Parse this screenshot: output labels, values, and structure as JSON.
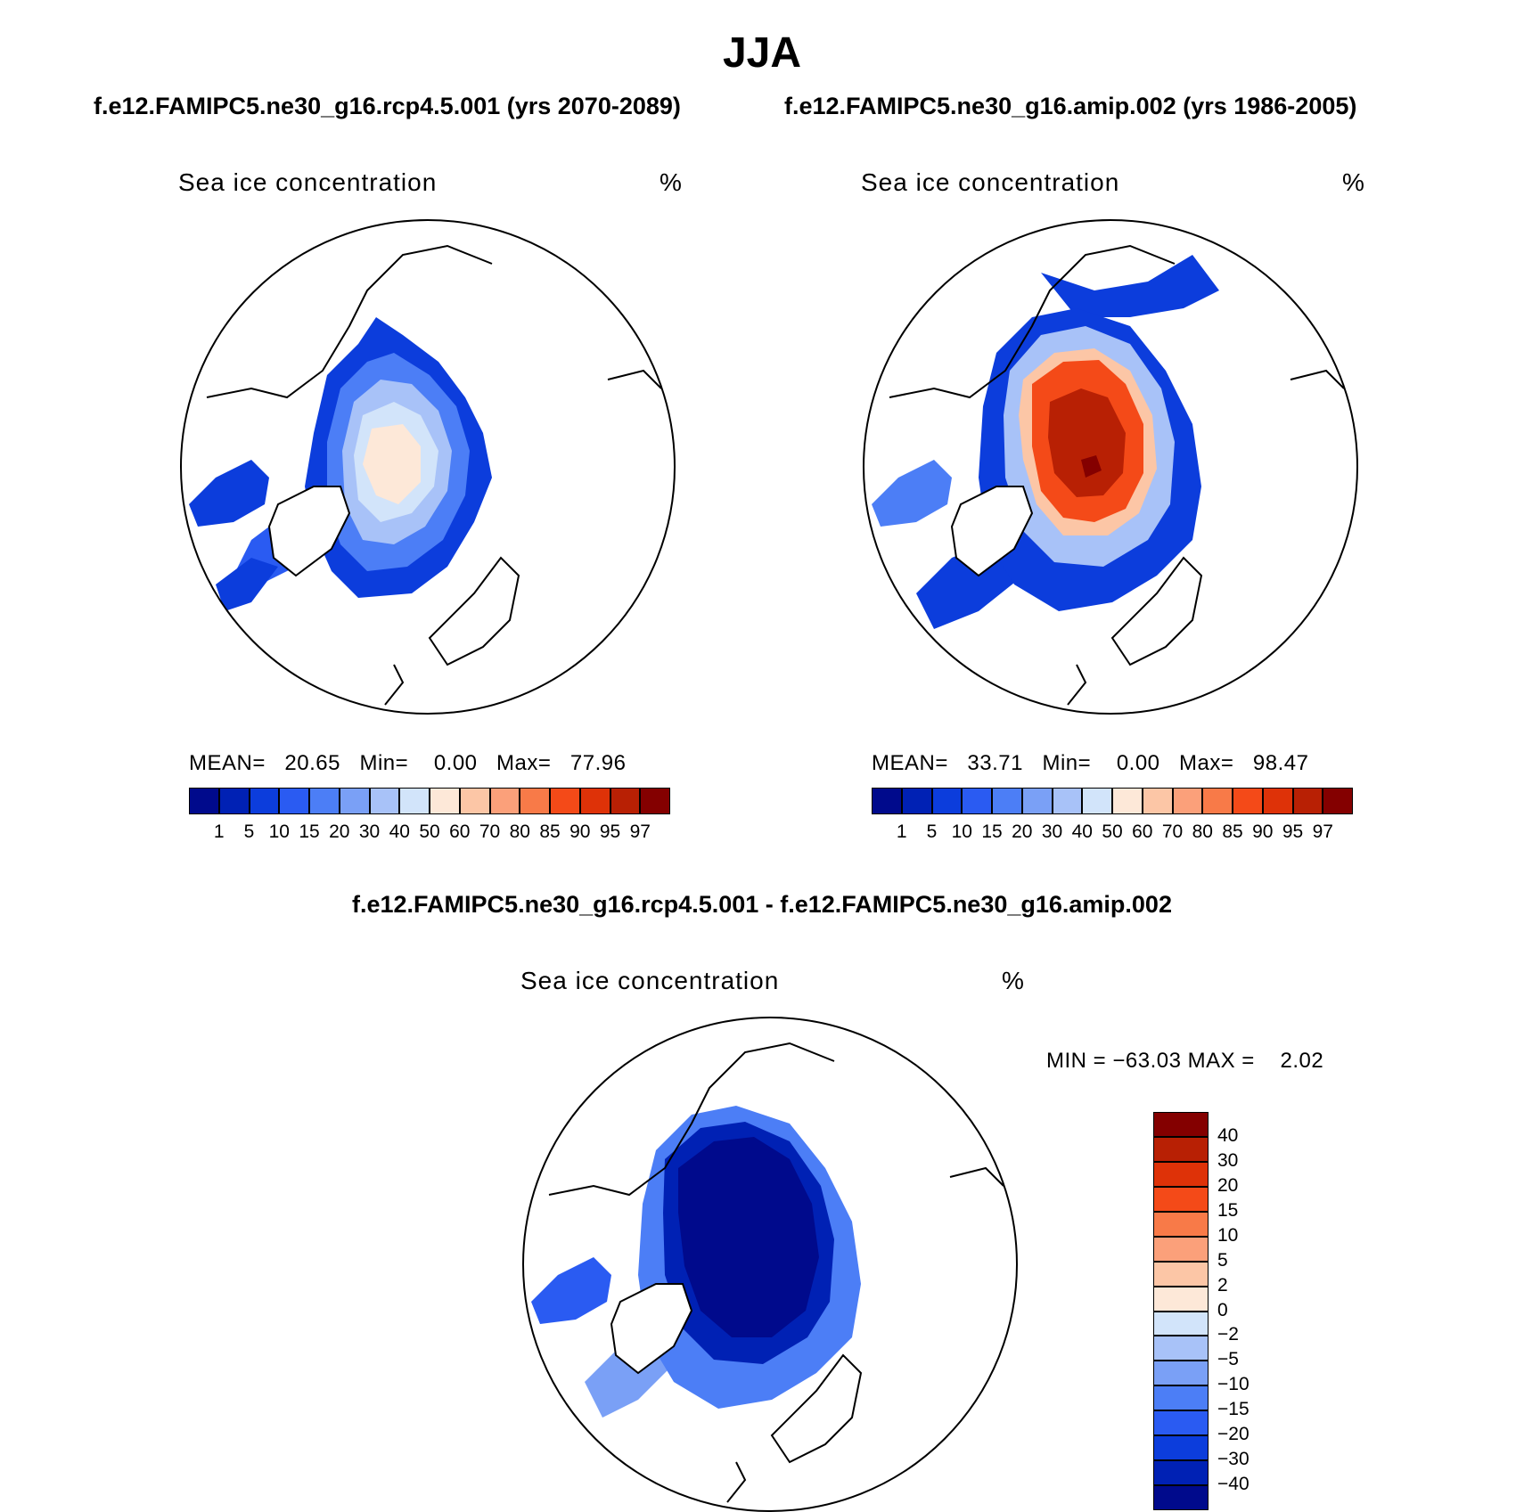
{
  "season_title": "JJA",
  "panel_left": {
    "case_title": "f.e12.FAMIPC5.ne30_g16.rcp4.5.001 (yrs 2070-2089)",
    "variable": "Sea ice concentration",
    "units": "%",
    "mean_label": "MEAN=",
    "mean": "20.65",
    "min_label": "Min=",
    "min": "0.00",
    "max_label": "Max=",
    "max": "77.96"
  },
  "panel_right": {
    "case_title": "f.e12.FAMIPC5.ne30_g16.amip.002 (yrs 1986-2005)",
    "variable": "Sea ice concentration",
    "units": "%",
    "mean_label": "MEAN=",
    "mean": "33.71",
    "min_label": "Min=",
    "min": "0.00",
    "max_label": "Max=",
    "max": "98.47"
  },
  "panel_diff": {
    "case_title": "f.e12.FAMIPC5.ne30_g16.rcp4.5.001 - f.e12.FAMIPC5.ne30_g16.amip.002",
    "variable": "Sea ice concentration",
    "units": "%",
    "min_label": "MIN =",
    "min": "−63.03",
    "max_label": "MAX =",
    "max": "2.02"
  },
  "colorbar_abs": {
    "labels": [
      "1",
      "5",
      "10",
      "15",
      "20",
      "30",
      "40",
      "50",
      "60",
      "70",
      "80",
      "85",
      "90",
      "95",
      "97"
    ],
    "colors": [
      "#000a8c",
      "#0021b4",
      "#0c3ddc",
      "#2a5bf2",
      "#4c7ef6",
      "#7aa0f6",
      "#a8c2f8",
      "#d2e4fa",
      "#fde8d8",
      "#fcc6a6",
      "#fba07a",
      "#f87a48",
      "#f44a18",
      "#de3208",
      "#b82004",
      "#840000"
    ]
  },
  "colorbar_diff": {
    "labels": [
      "40",
      "30",
      "20",
      "15",
      "10",
      "5",
      "2",
      "0",
      "−2",
      "−5",
      "−10",
      "−15",
      "−20",
      "−30",
      "−40"
    ],
    "colors": [
      "#840000",
      "#b82004",
      "#de3208",
      "#f44a18",
      "#f87a48",
      "#fba07a",
      "#fcc6a6",
      "#fde8d8",
      "#d2e4fa",
      "#a8c2f8",
      "#7aa0f6",
      "#4c7ef6",
      "#2a5bf2",
      "#0c3ddc",
      "#0021b4",
      "#000a8c"
    ]
  },
  "map_fills": {
    "ice_edge": "#0c3ddc",
    "ice_mid": "#4c7ef6",
    "ice_light": "#a8c2f8",
    "ice_pale": "#d2e4fa",
    "ice_peach": "#fde8d8",
    "ice_orange": "#f44a18",
    "ice_red": "#b82004",
    "ice_dark": "#840000",
    "diff_core": "#000a8c",
    "diff_ring": "#0021b4",
    "land": "#ffffff",
    "coast": "#000000"
  }
}
